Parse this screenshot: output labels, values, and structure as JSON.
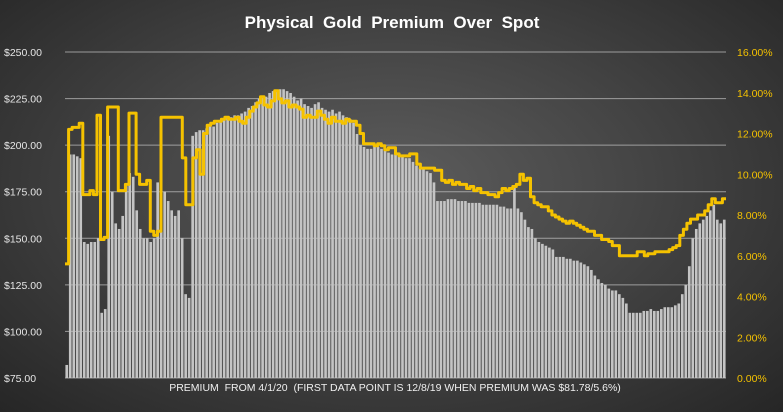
{
  "chart_data": {
    "type": "bar+line",
    "title": "Physical  Gold  Premium  Over  Spot",
    "xlabel": "PREMIUM  FROM 4/1/20  (FIRST DATA POINT IS 12/8/19 WHEN PREMIUM WAS $81.78/5.6%)",
    "y_left": {
      "ylim": [
        75,
        250
      ],
      "ticks": [
        "$75.00",
        "$100.00",
        "$125.00",
        "$150.00",
        "$175.00",
        "$200.00",
        "$225.00",
        "$250.00"
      ]
    },
    "y_right": {
      "ylim": [
        0,
        16
      ],
      "ticks": [
        "0.00%",
        "2.00%",
        "4.00%",
        "6.00%",
        "8.00%",
        "10.00%",
        "12.00%",
        "14.00%",
        "16.00%"
      ]
    },
    "grid": true,
    "colors": {
      "bars": "#c4c4c4",
      "line": "#f5c200",
      "grid": "#bdbdbd",
      "right_axis_text": "#f5c200",
      "left_axis_text": "#e6e6e6"
    },
    "series": [
      {
        "kind": "bar",
        "axis": "left",
        "values": [
          82,
          195,
          195,
          194,
          193,
          148,
          147,
          148,
          148,
          150,
          110,
          112,
          205,
          175,
          158,
          155,
          162,
          178,
          185,
          183,
          165,
          155,
          150,
          150,
          148,
          150,
          180,
          185,
          175,
          170,
          165,
          162,
          165,
          150,
          120,
          118,
          205,
          207,
          208,
          208,
          209,
          210,
          210,
          212,
          213,
          214,
          215,
          215,
          216,
          216,
          217,
          218,
          220,
          221,
          223,
          225,
          226,
          226,
          228,
          229,
          229,
          230,
          230,
          229,
          228,
          226,
          224,
          225,
          222,
          221,
          220,
          222,
          223,
          220,
          219,
          218,
          219,
          217,
          218,
          216,
          215,
          214,
          212,
          206,
          200,
          199,
          198,
          198,
          199,
          199,
          198,
          197,
          196,
          195,
          195,
          195,
          194,
          193,
          193,
          191,
          189,
          188,
          188,
          186,
          185,
          180,
          170,
          170,
          170,
          171,
          171,
          171,
          170,
          170,
          170,
          169,
          169,
          169,
          169,
          168,
          168,
          168,
          168,
          168,
          167,
          167,
          166,
          166,
          178,
          166,
          164,
          160,
          156,
          155,
          150,
          148,
          147,
          146,
          145,
          144,
          140,
          140,
          140,
          139,
          139,
          138,
          138,
          137,
          136,
          135,
          133,
          130,
          128,
          126,
          125,
          123,
          122,
          122,
          120,
          118,
          115,
          110,
          110,
          110,
          110,
          111,
          111,
          112,
          111,
          111,
          112,
          113,
          113,
          113,
          114,
          115,
          120,
          125,
          135,
          150,
          155,
          158,
          160,
          162,
          165,
          168,
          160,
          158,
          160
        ],
        "notes": "values in $ (left axis), read approximately from gridlines"
      },
      {
        "kind": "line",
        "axis": "right",
        "values": [
          5.6,
          12.2,
          12.3,
          12.3,
          12.5,
          9.0,
          9.0,
          9.2,
          9.0,
          12.9,
          6.8,
          6.9,
          13.3,
          13.3,
          13.3,
          9.2,
          9.2,
          9.5,
          13.0,
          13.0,
          10.0,
          9.5,
          9.5,
          9.7,
          7.2,
          7.0,
          7.2,
          12.8,
          12.8,
          12.8,
          12.8,
          12.8,
          12.8,
          10.8,
          8.5,
          8.5,
          10.8,
          11.2,
          10.0,
          12.0,
          12.4,
          12.5,
          12.6,
          12.6,
          12.7,
          12.8,
          12.7,
          12.7,
          12.8,
          12.6,
          12.5,
          12.8,
          13.1,
          13.3,
          13.5,
          13.8,
          13.4,
          13.3,
          13.6,
          14.1,
          13.7,
          13.5,
          13.6,
          13.3,
          13.4,
          13.3,
          13.2,
          12.8,
          12.9,
          12.8,
          12.8,
          13.1,
          12.9,
          12.7,
          12.5,
          12.8,
          12.6,
          12.6,
          12.5,
          12.7,
          12.6,
          12.6,
          12.4,
          12.0,
          11.5,
          11.5,
          11.5,
          11.4,
          11.5,
          11.4,
          11.2,
          11.3,
          11.3,
          11.0,
          10.9,
          10.9,
          10.9,
          11.0,
          11.0,
          10.5,
          10.3,
          10.3,
          10.3,
          10.3,
          10.2,
          10.2,
          9.7,
          9.6,
          9.7,
          9.5,
          9.6,
          9.5,
          9.5,
          9.3,
          9.4,
          9.2,
          9.3,
          9.1,
          9.1,
          9.0,
          9.0,
          8.9,
          9.1,
          9.3,
          9.2,
          9.3,
          9.4,
          9.5,
          10.0,
          9.7,
          9.8,
          8.9,
          8.6,
          8.5,
          8.4,
          8.4,
          8.2,
          8.0,
          7.9,
          7.8,
          7.7,
          7.6,
          7.7,
          7.6,
          7.5,
          7.4,
          7.3,
          7.2,
          7.2,
          7.0,
          7.0,
          6.8,
          6.8,
          6.7,
          6.5,
          6.5,
          6.0,
          6.0,
          6.0,
          6.0,
          6.0,
          6.2,
          6.2,
          6.0,
          6.1,
          6.1,
          6.2,
          6.2,
          6.2,
          6.2,
          6.3,
          6.4,
          6.5,
          7.0,
          7.3,
          7.6,
          7.8,
          7.8,
          8.0,
          8.0,
          8.2,
          8.5,
          8.8,
          8.6,
          8.6,
          8.8
        ],
        "notes": "premium % (right axis), read approximately from gridlines"
      }
    ]
  }
}
